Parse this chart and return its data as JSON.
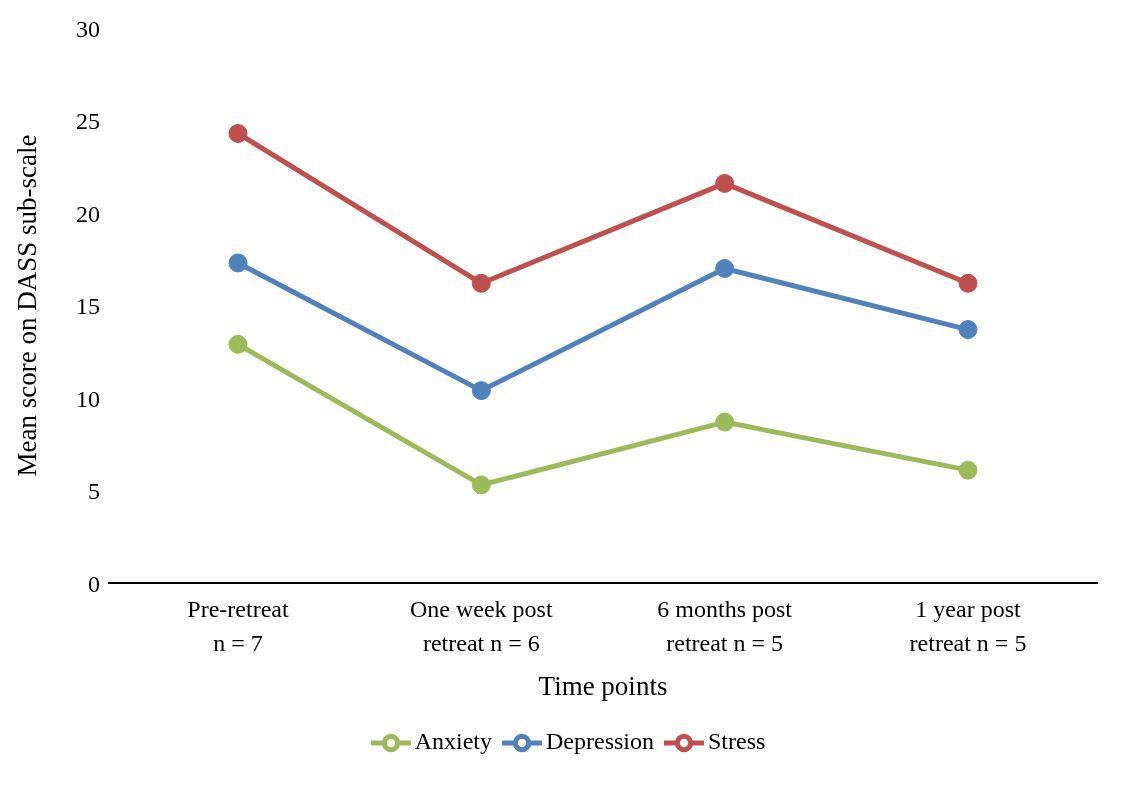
{
  "chart_data": {
    "type": "line",
    "xlabel": "Time points",
    "ylabel": "Mean score on DASS sub-scale",
    "categories": [
      "Pre-retreat\nn = 7",
      "One week post\nretreat n = 6",
      "6 months post\nretreat n = 5",
      "1 year post\nretreat n = 5"
    ],
    "series": [
      {
        "name": "Stress",
        "color": "#c0504d",
        "values": [
          24.3,
          16.2,
          21.6,
          16.2
        ]
      },
      {
        "name": "Anxiety",
        "color": "#9bbb59",
        "values": [
          12.9,
          5.3,
          8.7,
          6.1
        ]
      },
      {
        "name": "Depression",
        "color": "#4f81bd",
        "values": [
          17.3,
          10.4,
          17.0,
          13.7
        ]
      }
    ],
    "ylim": [
      0,
      30
    ],
    "yticks": [
      0,
      5,
      10,
      15,
      20,
      25,
      30
    ],
    "grid": false,
    "legend": "bottom",
    "marker": "circle",
    "line_style": "solid"
  }
}
